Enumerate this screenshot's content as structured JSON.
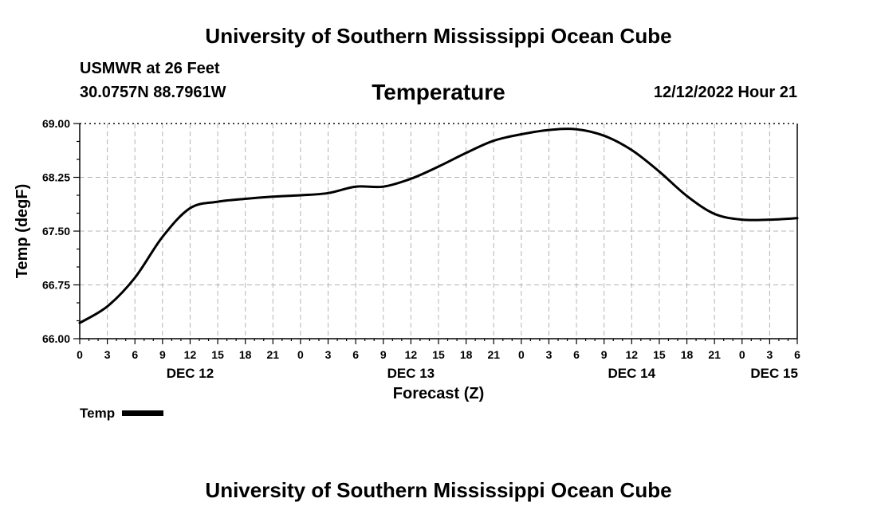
{
  "header": {
    "title": "University of Southern Mississippi Ocean Cube",
    "station": "USMWR at 26 Feet",
    "coords": "30.0757N  88.7961W",
    "datetime": "12/12/2022 Hour 21"
  },
  "footer": {
    "title": "University of Southern Mississippi Ocean Cube"
  },
  "legend": {
    "label": "Temp"
  },
  "chart_data": {
    "type": "line",
    "title": "Temperature",
    "xlabel": "Forecast (Z)",
    "ylabel": "Temp (degF)",
    "xlim": [
      0,
      78
    ],
    "ylim": [
      66.0,
      69.0
    ],
    "grid": true,
    "y_ticks": [
      66.0,
      66.75,
      67.5,
      68.25,
      69.0
    ],
    "y_tick_labels": [
      "66.00",
      "66.75",
      "67.50",
      "68.25",
      "69.00"
    ],
    "x_ticks": [
      0,
      3,
      6,
      9,
      12,
      15,
      18,
      21,
      24,
      27,
      30,
      33,
      36,
      39,
      42,
      45,
      48,
      51,
      54,
      57,
      60,
      63,
      66,
      69,
      72,
      75,
      78
    ],
    "x_tick_labels": [
      "0",
      "3",
      "6",
      "9",
      "12",
      "15",
      "18",
      "21",
      "0",
      "3",
      "6",
      "9",
      "12",
      "15",
      "18",
      "21",
      "0",
      "3",
      "6",
      "9",
      "12",
      "15",
      "18",
      "21",
      "0",
      "3",
      "6"
    ],
    "day_labels": [
      {
        "x": 12,
        "label": "DEC 12"
      },
      {
        "x": 36,
        "label": "DEC 13"
      },
      {
        "x": 60,
        "label": "DEC 14"
      },
      {
        "x": 75.5,
        "label": "DEC 15"
      }
    ],
    "legend_position": "bottom-left",
    "series": [
      {
        "name": "Temp",
        "color": "#000000",
        "x": [
          0,
          3,
          6,
          9,
          12,
          15,
          18,
          21,
          24,
          27,
          30,
          33,
          36,
          39,
          42,
          45,
          48,
          51,
          54,
          57,
          60,
          63,
          66,
          69,
          72,
          75,
          78
        ],
        "values": [
          66.22,
          66.45,
          66.85,
          67.42,
          67.82,
          67.91,
          67.95,
          67.98,
          68.0,
          68.03,
          68.12,
          68.12,
          68.23,
          68.4,
          68.59,
          68.76,
          68.85,
          68.91,
          68.92,
          68.83,
          68.63,
          68.33,
          67.99,
          67.74,
          67.66,
          67.66,
          67.68
        ]
      }
    ]
  }
}
